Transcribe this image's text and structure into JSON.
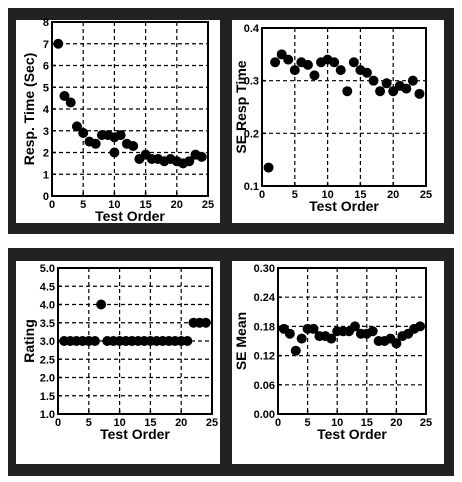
{
  "chart_data": [
    {
      "type": "scatter",
      "title": "",
      "xlabel": "Test Order",
      "ylabel": "Resp. Time (Sec)",
      "xlim": [
        0,
        25
      ],
      "ylim": [
        0,
        8
      ],
      "xticks": [
        0,
        5,
        10,
        15,
        20,
        25
      ],
      "yticks": [
        0,
        1,
        2,
        3,
        4,
        5,
        6,
        7,
        8
      ],
      "ytick_labels": [
        "0",
        "1",
        "2",
        "3",
        "4",
        "5",
        "6",
        "7",
        "8"
      ],
      "grid": true,
      "x": [
        1,
        2,
        3,
        4,
        5,
        6,
        7,
        8,
        9,
        10,
        10,
        11,
        12,
        13,
        14,
        15,
        16,
        17,
        18,
        19,
        20,
        21,
        22,
        23,
        24
      ],
      "y": [
        7.0,
        4.6,
        4.3,
        3.2,
        2.9,
        2.5,
        2.4,
        2.8,
        2.8,
        2.7,
        2.0,
        2.8,
        2.4,
        2.3,
        1.7,
        1.9,
        1.7,
        1.7,
        1.6,
        1.7,
        1.6,
        1.5,
        1.6,
        1.9,
        1.8
      ]
    },
    {
      "type": "scatter",
      "title": "",
      "xlabel": "Test Order",
      "ylabel": "SE Resp Time",
      "xlim": [
        0,
        25
      ],
      "ylim": [
        0.1,
        0.4
      ],
      "xticks": [
        0,
        5,
        10,
        15,
        20,
        25
      ],
      "yticks": [
        0.1,
        0.2,
        0.3,
        0.4
      ],
      "ytick_labels": [
        "0.1",
        "0.2",
        "0.3",
        "0.4"
      ],
      "grid": true,
      "x": [
        1,
        2,
        3,
        4,
        5,
        6,
        7,
        8,
        9,
        10,
        11,
        12,
        13,
        14,
        15,
        16,
        17,
        18,
        19,
        20,
        21,
        22,
        23,
        24
      ],
      "y": [
        0.135,
        0.335,
        0.35,
        0.34,
        0.32,
        0.335,
        0.33,
        0.31,
        0.335,
        0.34,
        0.335,
        0.32,
        0.28,
        0.335,
        0.32,
        0.315,
        0.3,
        0.28,
        0.295,
        0.28,
        0.29,
        0.285,
        0.3,
        0.275
      ]
    },
    {
      "type": "scatter",
      "title": "",
      "xlabel": "Test Order",
      "ylabel": "Rating",
      "xlim": [
        0,
        25
      ],
      "ylim": [
        1.0,
        5.0
      ],
      "xticks": [
        0,
        5,
        10,
        15,
        20,
        25
      ],
      "yticks": [
        1.0,
        1.5,
        2.0,
        2.5,
        3.0,
        3.5,
        4.0,
        4.5,
        5.0
      ],
      "ytick_labels": [
        "1.0",
        "1.5",
        "2.0",
        "2.5",
        "3.0",
        "3.5",
        "4.0",
        "4.5",
        "5.0"
      ],
      "grid": true,
      "x": [
        1,
        2,
        3,
        4,
        5,
        6,
        7,
        8,
        9,
        10,
        11,
        12,
        13,
        14,
        15,
        16,
        17,
        18,
        19,
        20,
        21,
        22,
        23,
        24
      ],
      "y": [
        3.0,
        3.0,
        3.0,
        3.0,
        3.0,
        3.0,
        4.0,
        3.0,
        3.0,
        3.0,
        3.0,
        3.0,
        3.0,
        3.0,
        3.0,
        3.0,
        3.0,
        3.0,
        3.0,
        3.0,
        3.0,
        3.5,
        3.5,
        3.5
      ]
    },
    {
      "type": "scatter",
      "title": "",
      "xlabel": "Test Order",
      "ylabel": "SE Mean",
      "xlim": [
        0,
        25
      ],
      "ylim": [
        0.0,
        0.3
      ],
      "xticks": [
        0,
        5,
        10,
        15,
        20,
        25
      ],
      "yticks": [
        0.0,
        0.06,
        0.12,
        0.18,
        0.24,
        0.3
      ],
      "ytick_labels": [
        "0.00",
        "0.06",
        "0.12",
        "0.18",
        "0.24",
        "0.30"
      ],
      "grid": true,
      "x": [
        1,
        2,
        3,
        4,
        5,
        6,
        7,
        8,
        9,
        10,
        11,
        12,
        13,
        14,
        15,
        16,
        17,
        18,
        19,
        20,
        21,
        22,
        23,
        24
      ],
      "y": [
        0.175,
        0.165,
        0.13,
        0.155,
        0.175,
        0.175,
        0.16,
        0.16,
        0.155,
        0.17,
        0.17,
        0.17,
        0.18,
        0.165,
        0.165,
        0.17,
        0.15,
        0.15,
        0.155,
        0.145,
        0.16,
        0.165,
        0.175,
        0.18
      ]
    }
  ]
}
